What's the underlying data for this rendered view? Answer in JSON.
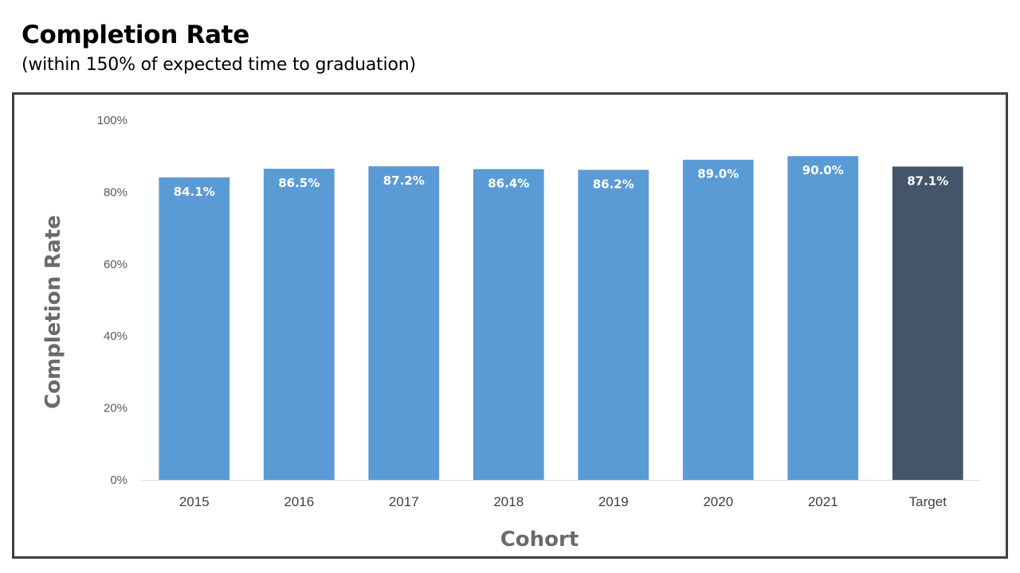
{
  "header": {
    "title": "Completion Rate",
    "subtitle": "(within 150% of expected time to graduation)"
  },
  "chart_data": {
    "type": "bar",
    "title": "",
    "xlabel": "Cohort",
    "ylabel": "Completion Rate",
    "ylim": [
      0,
      100
    ],
    "yticks": [
      "0%",
      "20%",
      "40%",
      "60%",
      "80%",
      "100%"
    ],
    "grid": false,
    "categories": [
      "2015",
      "2016",
      "2017",
      "2018",
      "2019",
      "2020",
      "2021",
      "Target"
    ],
    "values": [
      84.1,
      86.5,
      87.2,
      86.4,
      86.2,
      89.0,
      90.0,
      87.1
    ],
    "data_labels": [
      "84.1%",
      "86.5%",
      "87.2%",
      "86.4%",
      "86.2%",
      "89.0%",
      "90.0%",
      "87.1%"
    ],
    "colors": {
      "bar": "#5b9bd5",
      "target_bar": "#44546a",
      "axis_line": "#d9d9d9"
    }
  }
}
